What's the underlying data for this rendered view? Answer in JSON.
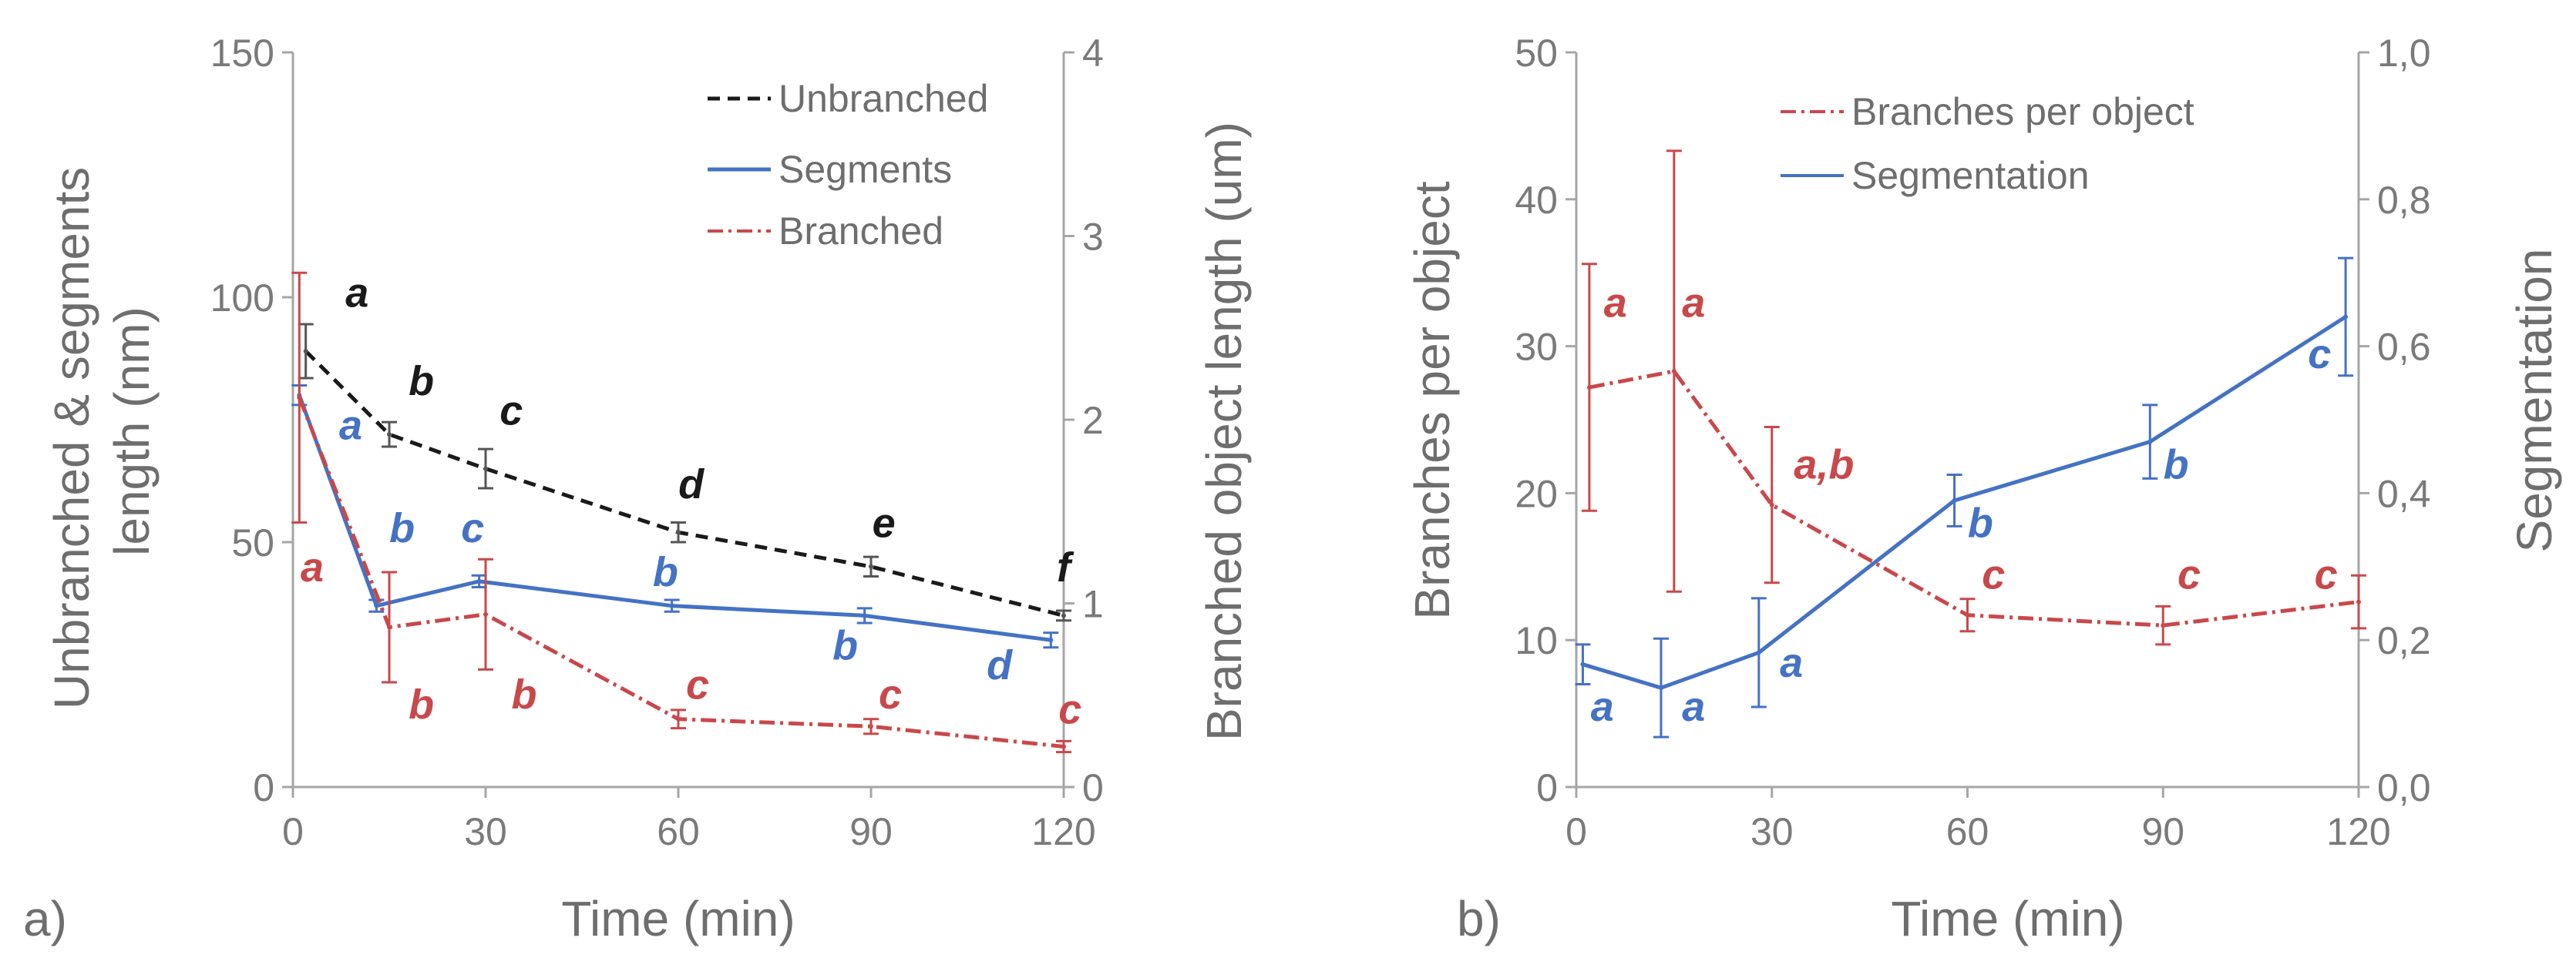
{
  "colors": {
    "black": "#1a1a1a",
    "blue": "#4472c4",
    "red": "#c9484a",
    "axis": "#a6a6a6",
    "text": "#6e6e6e"
  },
  "chart_data": [
    {
      "panel_label": "a)",
      "type": "line",
      "xlabel": "Time (min)",
      "ylabel_left": "Unbranched & segments length (nm)",
      "ylabel_left_lines": [
        "Unbranched & segments",
        "length (nm)"
      ],
      "ylabel_right": "Branched object length (um)",
      "xlim": [
        0,
        120
      ],
      "ylim_left": [
        0,
        150
      ],
      "ylim_right": [
        0,
        4
      ],
      "xticks": [
        "0",
        "30",
        "60",
        "90",
        "120"
      ],
      "yticks_left": [
        "0",
        "50",
        "100",
        "150"
      ],
      "yticks_right": [
        "0",
        "1",
        "2",
        "3",
        "4"
      ],
      "legend": [
        "Unbranched",
        "Segments",
        "Branched"
      ],
      "series": [
        {
          "name": "Unbranched",
          "axis": "left",
          "style": "dashed",
          "color": "#1a1a1a",
          "x": [
            2,
            15,
            30,
            60,
            90,
            120
          ],
          "y": [
            89,
            72,
            65,
            52,
            45,
            35
          ],
          "err": [
            5.5,
            2.5,
            4,
            2,
            2,
            1
          ]
        },
        {
          "name": "Segments",
          "axis": "left",
          "style": "solid",
          "color": "#4472c4",
          "x": [
            1,
            13,
            29,
            59,
            89,
            118
          ],
          "y": [
            80,
            37,
            42,
            37,
            35,
            30
          ],
          "err": [
            2,
            1.2,
            1.2,
            1.2,
            1.5,
            1.5
          ]
        },
        {
          "name": "Branched",
          "axis": "right",
          "style": "dashdot",
          "color": "#c9484a",
          "x": [
            1,
            15,
            30,
            60,
            90,
            120
          ],
          "y": [
            2.12,
            0.87,
            0.94,
            0.37,
            0.33,
            0.22
          ],
          "err": [
            0.68,
            0.3,
            0.3,
            0.05,
            0.04,
            0.03
          ]
        }
      ],
      "annotations": [
        {
          "text": "a",
          "color": "black",
          "x": 10,
          "y": 98
        },
        {
          "text": "b",
          "color": "black",
          "x": 20,
          "y": 80
        },
        {
          "text": "c",
          "color": "black",
          "x": 34,
          "y": 74
        },
        {
          "text": "d",
          "color": "black",
          "x": 62,
          "y": 59
        },
        {
          "text": "e",
          "color": "black",
          "x": 92,
          "y": 51
        },
        {
          "text": "f",
          "color": "black",
          "x": 120,
          "y": 42
        },
        {
          "text": "a",
          "color": "blue",
          "x": 9,
          "y": 71
        },
        {
          "text": "b",
          "color": "blue",
          "x": 17,
          "y": 50
        },
        {
          "text": "c",
          "color": "blue",
          "x": 28,
          "y": 50
        },
        {
          "text": "b",
          "color": "blue",
          "x": 58,
          "y": 41
        },
        {
          "text": "b",
          "color": "blue",
          "x": 86,
          "y": 26
        },
        {
          "text": "d",
          "color": "blue",
          "x": 110,
          "y": 22
        },
        {
          "text": "a",
          "color": "red",
          "x": 3,
          "y": 42
        },
        {
          "text": "b",
          "color": "red",
          "x": 20,
          "y": 14
        },
        {
          "text": "b",
          "color": "red",
          "x": 36,
          "y": 16
        },
        {
          "text": "c",
          "color": "red",
          "x": 63,
          "y": 18
        },
        {
          "text": "c",
          "color": "red",
          "x": 93,
          "y": 16
        },
        {
          "text": "c",
          "color": "red",
          "x": 121,
          "y": 13
        }
      ]
    },
    {
      "panel_label": "b)",
      "type": "line",
      "xlabel": "Time (min)",
      "ylabel_left": "Branches per object",
      "ylabel_right": "Segmentation",
      "xlim": [
        0,
        120
      ],
      "ylim_left": [
        0,
        50
      ],
      "ylim_right": [
        0,
        1.0
      ],
      "xticks": [
        "0",
        "30",
        "60",
        "90",
        "120"
      ],
      "yticks_left": [
        "0",
        "10",
        "20",
        "30",
        "40",
        "50"
      ],
      "yticks_right": [
        "0,0",
        "0,2",
        "0,4",
        "0,6",
        "0,8",
        "1,0"
      ],
      "legend": [
        "Branches per object",
        "Segmentation"
      ],
      "series": [
        {
          "name": "Branches per object",
          "axis": "left",
          "style": "dashdot",
          "color": "#c9484a",
          "x": [
            2,
            15,
            30,
            60,
            90,
            120
          ],
          "y": [
            27.2,
            28.3,
            19.2,
            11.7,
            11.0,
            12.6
          ],
          "err": [
            8.4,
            15,
            5.3,
            1.1,
            1.3,
            1.8
          ]
        },
        {
          "name": "Segmentation",
          "axis": "right",
          "style": "solid",
          "color": "#4472c4",
          "x": [
            1,
            13,
            28,
            58,
            88,
            118
          ],
          "y": [
            0.167,
            0.135,
            0.183,
            0.39,
            0.47,
            0.64
          ],
          "err": [
            0.027,
            0.067,
            0.074,
            0.035,
            0.05,
            0.08
          ]
        }
      ],
      "annotations": [
        {
          "text": "a",
          "color": "red",
          "x": 6,
          "y": 32
        },
        {
          "text": "a",
          "color": "red",
          "x": 18,
          "y": 32
        },
        {
          "text": "a,b",
          "color": "red",
          "x": 38,
          "y": 21
        },
        {
          "text": "c",
          "color": "red",
          "x": 64,
          "y": 13.5
        },
        {
          "text": "c",
          "color": "red",
          "x": 94,
          "y": 13.5
        },
        {
          "text": "c",
          "color": "red",
          "x": 115,
          "y": 13.5
        },
        {
          "text": "a",
          "color": "blue",
          "x": 4,
          "y": 4.5
        },
        {
          "text": "a",
          "color": "blue",
          "x": 18,
          "y": 4.5
        },
        {
          "text": "a",
          "color": "blue",
          "x": 33,
          "y": 7.5
        },
        {
          "text": "b",
          "color": "blue",
          "x": 62,
          "y": 17
        },
        {
          "text": "b",
          "color": "blue",
          "x": 92,
          "y": 21
        },
        {
          "text": "c",
          "color": "blue",
          "x": 114,
          "y": 28.5
        }
      ]
    }
  ]
}
